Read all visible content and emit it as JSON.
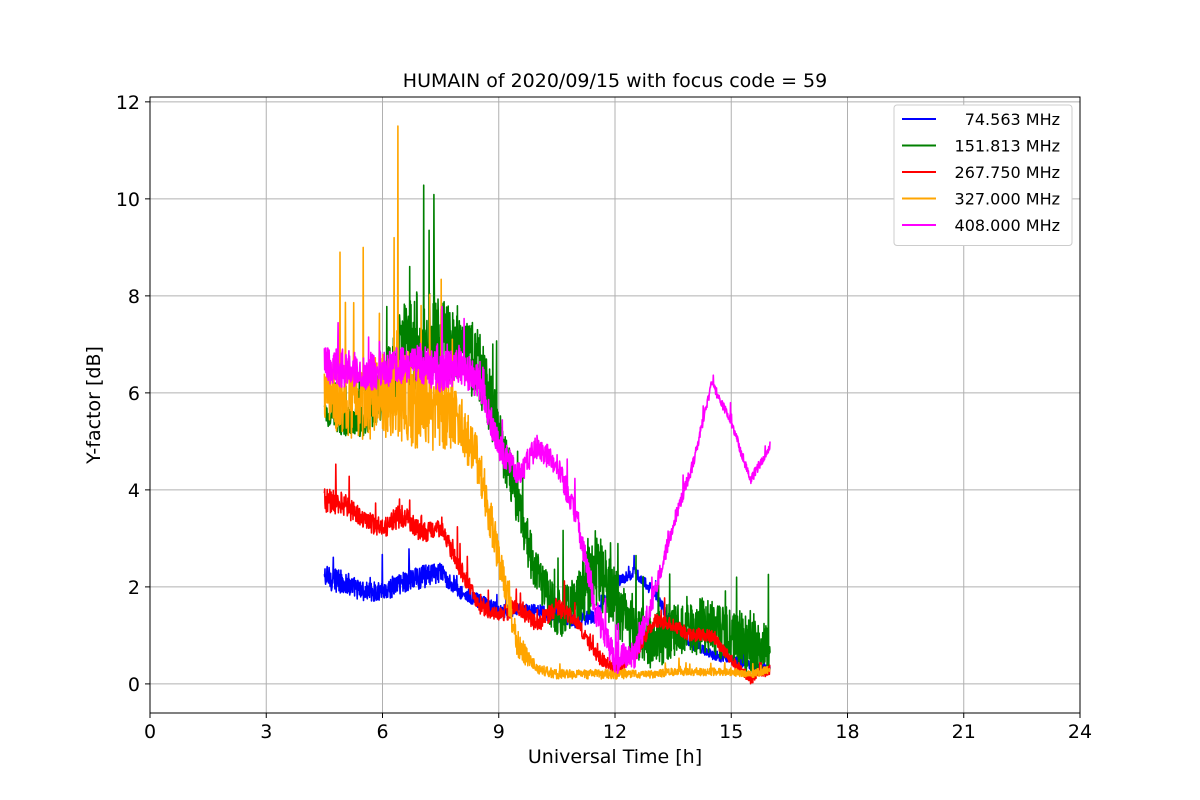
{
  "chart_data": {
    "type": "line",
    "title": "HUMAIN of 2020/09/15 with focus code = 59",
    "xlabel": "Universal Time [h]",
    "ylabel": "Y-factor [dB]",
    "xlim": [
      0,
      24
    ],
    "ylim": [
      -0.6,
      12.1
    ],
    "xticks": [
      0,
      3,
      6,
      9,
      12,
      15,
      18,
      21,
      24
    ],
    "yticks": [
      0,
      2,
      4,
      6,
      8,
      10,
      12
    ],
    "grid": true,
    "legend_position": "top-right",
    "series": [
      {
        "name": "74.563 MHz",
        "color": "#0000ff",
        "x": [
          4.5,
          5.0,
          5.5,
          6.0,
          6.5,
          7.0,
          7.5,
          8.0,
          8.5,
          9.0,
          9.5,
          10.0,
          10.5,
          11.0,
          11.5,
          12.0,
          12.5,
          13.0,
          13.5,
          14.0,
          14.5,
          15.0,
          15.5,
          16.0
        ],
        "y": [
          2.2,
          2.1,
          1.9,
          1.9,
          2.1,
          2.2,
          2.3,
          1.9,
          1.7,
          1.5,
          1.5,
          1.5,
          1.4,
          1.3,
          1.4,
          2.1,
          2.3,
          1.9,
          1.2,
          0.8,
          0.6,
          0.5,
          0.4,
          0.3
        ],
        "noise": [
          0.25,
          0.25,
          0.2,
          0.2,
          0.25,
          0.25,
          0.2,
          0.15,
          0.15,
          0.15,
          0.15,
          0.15,
          0.15,
          0.15,
          0.15,
          0.12,
          0.12,
          0.12,
          0.12,
          0.1,
          0.1,
          0.1,
          0.1,
          0.08
        ]
      },
      {
        "name": "151.813 MHz",
        "color": "#008000",
        "x": [
          4.5,
          5.0,
          5.5,
          6.0,
          6.5,
          7.0,
          7.5,
          8.0,
          8.5,
          9.0,
          9.5,
          10.0,
          10.5,
          11.0,
          11.5,
          12.0,
          12.5,
          13.0,
          13.5,
          14.0,
          14.5,
          15.0,
          15.5,
          16.0
        ],
        "y": [
          5.6,
          5.4,
          5.4,
          6.0,
          6.8,
          7.2,
          7.0,
          7.0,
          6.5,
          5.2,
          3.6,
          2.2,
          1.4,
          1.7,
          2.4,
          1.8,
          1.0,
          0.9,
          1.1,
          1.2,
          1.2,
          1.0,
          0.8,
          0.7
        ],
        "noise": [
          0.3,
          0.3,
          0.3,
          0.6,
          1.0,
          1.0,
          0.9,
          0.8,
          0.8,
          0.6,
          0.5,
          0.5,
          0.5,
          0.6,
          0.8,
          0.7,
          0.6,
          0.6,
          0.6,
          0.6,
          0.6,
          0.6,
          0.6,
          0.5
        ]
      },
      {
        "name": "267.750 MHz",
        "color": "#ff0000",
        "x": [
          4.5,
          5.0,
          5.5,
          6.0,
          6.5,
          7.0,
          7.5,
          8.0,
          8.5,
          9.0,
          9.5,
          10.0,
          10.5,
          11.0,
          11.5,
          12.0,
          12.5,
          13.0,
          13.5,
          14.0,
          14.5,
          15.0,
          15.5,
          16.0
        ],
        "y": [
          3.8,
          3.7,
          3.4,
          3.2,
          3.5,
          3.1,
          3.2,
          2.4,
          1.6,
          1.4,
          1.6,
          1.2,
          1.6,
          1.3,
          0.6,
          0.3,
          0.6,
          1.3,
          1.2,
          1.0,
          1.0,
          0.5,
          0.1,
          0.3
        ],
        "noise": [
          0.25,
          0.25,
          0.2,
          0.2,
          0.25,
          0.2,
          0.2,
          0.2,
          0.15,
          0.15,
          0.2,
          0.15,
          0.2,
          0.15,
          0.15,
          0.15,
          0.15,
          0.15,
          0.15,
          0.15,
          0.15,
          0.1,
          0.1,
          0.1
        ]
      },
      {
        "name": "327.000 MHz",
        "color": "#ffa500",
        "x": [
          4.5,
          5.0,
          5.5,
          6.0,
          6.5,
          7.0,
          7.5,
          8.0,
          8.5,
          9.0,
          9.5,
          10.0,
          10.5,
          11.0,
          11.5,
          12.0,
          12.5,
          13.0,
          13.5,
          14.0,
          14.5,
          15.0,
          15.5,
          16.0
        ],
        "y": [
          6.0,
          5.9,
          5.8,
          6.0,
          6.0,
          5.7,
          5.6,
          5.4,
          4.5,
          2.6,
          0.8,
          0.3,
          0.2,
          0.2,
          0.2,
          0.2,
          0.2,
          0.2,
          0.25,
          0.25,
          0.25,
          0.25,
          0.2,
          0.3
        ],
        "noise": [
          0.6,
          0.8,
          0.8,
          0.9,
          1.0,
          0.9,
          0.8,
          0.6,
          0.5,
          0.4,
          0.3,
          0.1,
          0.1,
          0.1,
          0.1,
          0.1,
          0.08,
          0.08,
          0.08,
          0.08,
          0.08,
          0.08,
          0.08,
          0.08
        ],
        "spikes": [
          [
            4.9,
            8.9
          ],
          [
            5.5,
            9.0
          ],
          [
            6.3,
            9.2
          ],
          [
            6.4,
            11.5
          ],
          [
            7.0,
            7.8
          ]
        ]
      },
      {
        "name": "408.000 MHz",
        "color": "#ff00ff",
        "x": [
          4.5,
          5.0,
          5.5,
          6.0,
          6.5,
          7.0,
          7.5,
          8.0,
          8.5,
          9.0,
          9.5,
          10.0,
          10.5,
          11.0,
          11.5,
          12.0,
          12.5,
          13.0,
          13.5,
          14.0,
          14.5,
          15.0,
          15.5,
          16.0
        ],
        "y": [
          6.6,
          6.5,
          6.4,
          6.5,
          6.6,
          6.6,
          6.4,
          6.6,
          6.2,
          4.9,
          4.3,
          4.9,
          4.5,
          3.5,
          1.5,
          0.5,
          0.6,
          1.8,
          3.3,
          4.5,
          6.2,
          5.4,
          4.2,
          4.9
        ],
        "noise": [
          0.4,
          0.4,
          0.4,
          0.4,
          0.4,
          0.4,
          0.4,
          0.4,
          0.35,
          0.3,
          0.25,
          0.25,
          0.25,
          0.25,
          0.3,
          0.3,
          0.3,
          0.2,
          0.15,
          0.12,
          0.1,
          0.1,
          0.1,
          0.1
        ]
      }
    ]
  }
}
